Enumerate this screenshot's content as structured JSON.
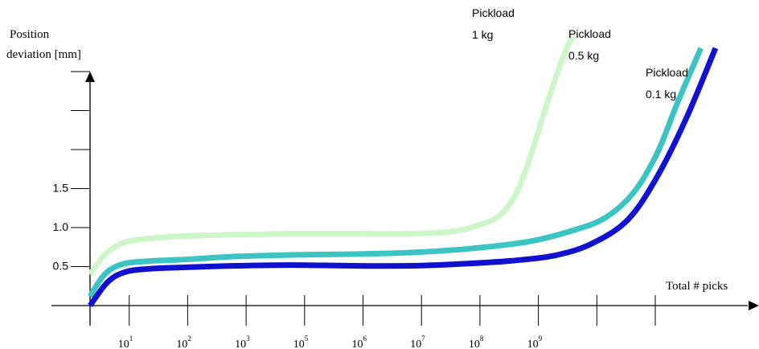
{
  "chart_data": {
    "type": "line",
    "ylabel_lines": [
      "Position",
      "deviation [mm]"
    ],
    "xlabel": "Total # picks",
    "y_ticks": [
      {
        "label": "0.5",
        "value": 0.5
      },
      {
        "label": "1.0",
        "value": 1.0
      },
      {
        "label": "1.5",
        "value": 1.5
      },
      {
        "label": "",
        "value": 2.0
      },
      {
        "label": "",
        "value": 2.5
      },
      {
        "label": "",
        "value": 3.0
      }
    ],
    "x_ticks": [
      {
        "base": "10",
        "exp": "1"
      },
      {
        "base": "10",
        "exp": "2"
      },
      {
        "base": "10",
        "exp": "3"
      },
      {
        "base": "10",
        "exp": "5"
      },
      {
        "base": "10",
        "exp": "6"
      },
      {
        "base": "10",
        "exp": "7"
      },
      {
        "base": "10",
        "exp": "8"
      },
      {
        "base": "10",
        "exp": "9"
      },
      {
        "base": "",
        "exp": ""
      },
      {
        "base": "",
        "exp": ""
      }
    ],
    "series": [
      {
        "name_lines": [
          "Pickload",
          "1 kg"
        ],
        "color": "#ccf5c8",
        "points": [
          [
            0,
            0.4
          ],
          [
            0.25,
            0.65
          ],
          [
            0.55,
            0.8
          ],
          [
            1,
            0.86
          ],
          [
            1.6,
            0.89
          ],
          [
            2.5,
            0.91
          ],
          [
            3.5,
            0.92
          ],
          [
            4.5,
            0.92
          ],
          [
            5.5,
            0.92
          ],
          [
            6.2,
            0.95
          ],
          [
            6.6,
            1.02
          ],
          [
            7,
            1.15
          ],
          [
            7.3,
            1.45
          ],
          [
            7.55,
            1.95
          ],
          [
            7.8,
            2.55
          ],
          [
            8.1,
            3.2
          ],
          [
            8.25,
            3.45
          ]
        ]
      },
      {
        "name_lines": [
          "Pickload",
          "0.5 kg"
        ],
        "color": "#3cc4c4",
        "points": [
          [
            0,
            0.12
          ],
          [
            0.25,
            0.4
          ],
          [
            0.55,
            0.53
          ],
          [
            1,
            0.57
          ],
          [
            1.6,
            0.59
          ],
          [
            2.5,
            0.63
          ],
          [
            3.5,
            0.65
          ],
          [
            4.5,
            0.66
          ],
          [
            5.5,
            0.68
          ],
          [
            6.5,
            0.73
          ],
          [
            7.5,
            0.82
          ],
          [
            8.2,
            0.95
          ],
          [
            8.8,
            1.12
          ],
          [
            9.3,
            1.45
          ],
          [
            9.7,
            1.95
          ],
          [
            10.05,
            2.6
          ],
          [
            10.45,
            3.3
          ]
        ]
      },
      {
        "name_lines": [
          "Pickload",
          "0.1 kg"
        ],
        "color": "#1010d0",
        "points": [
          [
            0,
            0
          ],
          [
            0.3,
            0.3
          ],
          [
            0.6,
            0.43
          ],
          [
            1,
            0.47
          ],
          [
            1.6,
            0.49
          ],
          [
            2.5,
            0.51
          ],
          [
            3.5,
            0.52
          ],
          [
            4.5,
            0.51
          ],
          [
            5.5,
            0.51
          ],
          [
            6.5,
            0.54
          ],
          [
            7.3,
            0.58
          ],
          [
            8,
            0.65
          ],
          [
            8.6,
            0.8
          ],
          [
            9.2,
            1.1
          ],
          [
            9.7,
            1.65
          ],
          [
            10.2,
            2.4
          ],
          [
            10.7,
            3.3
          ]
        ]
      }
    ]
  }
}
